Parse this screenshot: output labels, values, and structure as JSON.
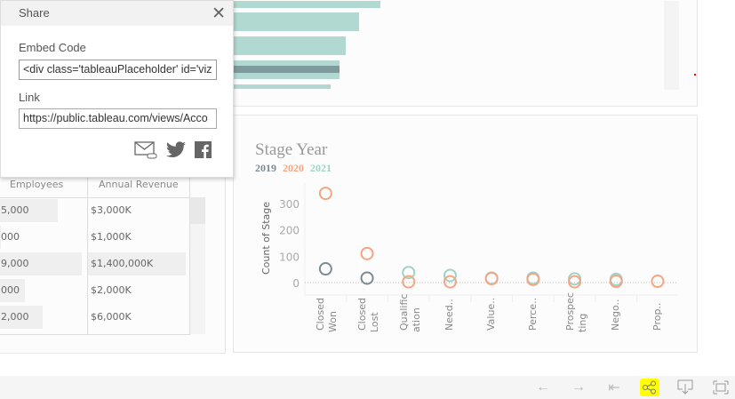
{
  "share": {
    "title": "Share",
    "embed_label": "Embed Code",
    "embed_value": "<div class='tableauPlaceholder' id='viz",
    "link_label": "Link",
    "link_value": "https://public.tableau.com/views/Acco",
    "icons": [
      "email-link-icon",
      "twitter-icon",
      "facebook-icon",
      "close-icon"
    ]
  },
  "table": {
    "headers": [
      "Employees",
      "Annual Revenue"
    ],
    "rows": [
      [
        "5,000",
        "$3,000K"
      ],
      [
        "000",
        "$1,000K"
      ],
      [
        "9,000",
        "$1,400,000K"
      ],
      [
        "000",
        "$2,000K"
      ],
      [
        "2,000",
        "$6,000K"
      ]
    ]
  },
  "colors": {
    "2019": "#7b8a93",
    "2020": "#f4a582",
    "2021": "#9fd3c7",
    "bar": "#b1d9d1",
    "bar_dark": "#7f9a9d",
    "highlight": "#ffff00"
  },
  "chart_data": {
    "type": "scatter",
    "title": "Stage Year",
    "legend": [
      "2019",
      "2020",
      "2021"
    ],
    "ylabel": "Count of Stage",
    "yticks": [
      0,
      100,
      200,
      300
    ],
    "ylim": [
      -40,
      370
    ],
    "categories": [
      "Closed Won",
      "Closed Lost",
      "Qualification",
      "Need..",
      "Value..",
      "Perce..",
      "Prospecting",
      "Nego..",
      "Prop.."
    ],
    "category_labels": [
      [
        "Closed",
        "Won"
      ],
      [
        "Closed",
        "Lost"
      ],
      [
        "Qualific",
        "ation"
      ],
      [
        "Need.."
      ],
      [
        "Value.."
      ],
      [
        "Perce.."
      ],
      [
        "Prospec",
        "ting"
      ],
      [
        "Nego.."
      ],
      [
        "Prop.."
      ]
    ],
    "series": [
      {
        "name": "2019",
        "values": [
          52,
          17,
          null,
          null,
          null,
          null,
          null,
          null,
          null
        ]
      },
      {
        "name": "2021",
        "values": [
          null,
          null,
          38,
          27,
          17,
          17,
          14,
          12,
          null
        ]
      },
      {
        "name": "2020",
        "values": [
          338,
          110,
          3,
          3,
          15,
          12,
          3,
          5,
          5
        ]
      }
    ]
  },
  "toolbar": {
    "buttons": [
      "undo-icon",
      "redo-icon",
      "revert-icon",
      "share-icon",
      "download-icon",
      "fullscreen-icon"
    ]
  }
}
